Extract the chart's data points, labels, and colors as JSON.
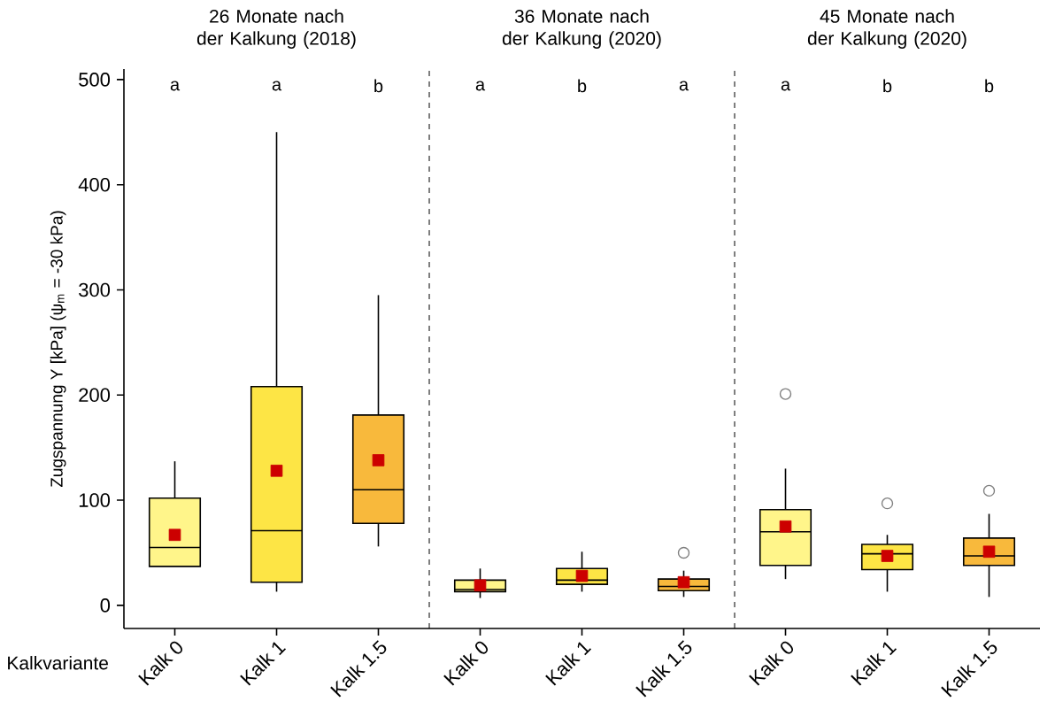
{
  "chart_data": [
    {
      "type": "box",
      "title": "26 Monate nach der Kalkung (2018)",
      "xlabel": "Kalkvariante",
      "ylabel": "Zugspannung Y [kPa] (ψ$_{m}$ = -30 kPa)",
      "categories": [
        "Kalk 0",
        "Kalk 1",
        "Kalk 1.5"
      ],
      "colors": [
        "#fff58a",
        "#fde545",
        "#f8b93c"
      ],
      "boxes": [
        {
          "low": 37,
          "q1": 37,
          "median": 55,
          "q3": 102,
          "high": 137,
          "mean": 67
        },
        {
          "low": 13,
          "q1": 22,
          "median": 71,
          "q3": 208,
          "high": 450,
          "mean": 128
        },
        {
          "low": 56,
          "q1": 78,
          "median": 110,
          "q3": 181,
          "high": 295,
          "mean": 138
        }
      ],
      "ylim": [
        -22,
        510
      ],
      "yticks": [
        0,
        100,
        200,
        300,
        400,
        500
      ],
      "annotations": [
        "a",
        "a",
        "b"
      ]
    },
    {
      "type": "box",
      "title": "36 Monate nach der Kalkung (2020)",
      "tick_labels": "x",
      "categories": [
        "Kalk 0",
        "Kalk 1",
        "Kalk 1.5"
      ],
      "colors": [
        "#fff58a",
        "#fde545",
        "#f8b93c"
      ],
      "boxes": [
        {
          "low": 7,
          "q1": 13,
          "median": 15,
          "q3": 24,
          "high": 35,
          "mean": 19
        },
        {
          "low": 13,
          "q1": 20,
          "median": 24,
          "q3": 35,
          "high": 51,
          "mean": 28
        },
        {
          "low": 8,
          "q1": 14,
          "median": 18,
          "q3": 25,
          "high": 33,
          "mean": 22,
          "outliers": [
            50
          ]
        }
      ],
      "ylim": [
        -22,
        510
      ],
      "yticks": [
        0,
        100,
        200,
        300,
        400,
        500
      ],
      "annotations": [
        "a",
        "b",
        "a"
      ]
    },
    {
      "type": "box",
      "title": "45 Monate nach der Kalkung (2020)",
      "tick_labels": "x",
      "categories": [
        "Kalk 0",
        "Kalk 1",
        "Kalk 1.5"
      ],
      "colors": [
        "#fff58a",
        "#fde545",
        "#f8b93c"
      ],
      "boxes": [
        {
          "low": 25,
          "q1": 38,
          "median": 70,
          "q3": 91,
          "high": 130,
          "mean": 75,
          "outliers": [
            201
          ]
        },
        {
          "low": 13,
          "q1": 34,
          "median": 49,
          "q3": 58,
          "high": 67,
          "mean": 47,
          "outliers": [
            97
          ]
        },
        {
          "low": 8,
          "q1": 38,
          "median": 47,
          "q3": 64,
          "high": 87,
          "mean": 51,
          "outliers": [
            109
          ]
        }
      ],
      "ylim": [
        -22,
        510
      ],
      "yticks": [
        0,
        100,
        200,
        300,
        400,
        500
      ],
      "annotations": [
        "a",
        "b",
        "b"
      ]
    }
  ]
}
